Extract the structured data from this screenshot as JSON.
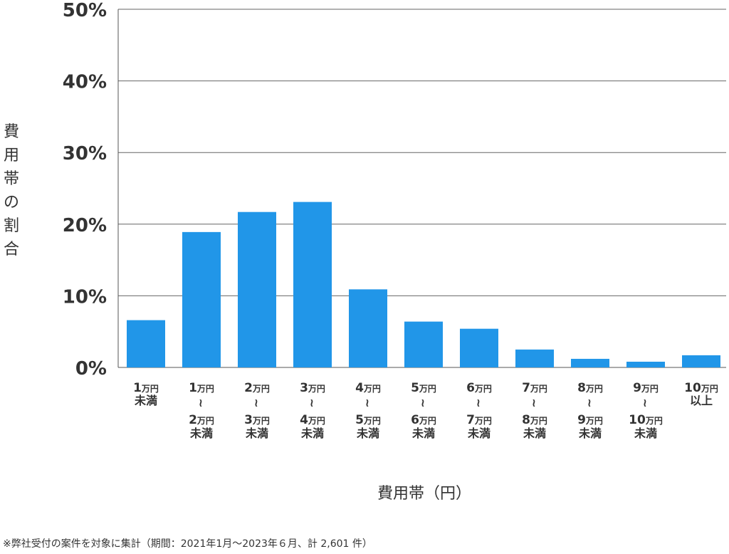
{
  "chart_data": {
    "type": "bar",
    "ylabel": "費用帯の割合",
    "xlabel": "費用帯（円）",
    "note": "※弊社受付の案件を対象に集計（期間：2021年1月～2023年６月、計 2,601 件）",
    "ylim": [
      0,
      50
    ],
    "yticks": [
      "0%",
      "10%",
      "20%",
      "30%",
      "40%",
      "50%"
    ],
    "ytick_values": [
      0,
      10,
      20,
      30,
      40,
      50
    ],
    "grid": true,
    "bar_color": "#2196e8",
    "categories": [
      {
        "from_num": "1",
        "from_unit": "万円",
        "to_num": "",
        "to_unit": "",
        "suffix": "未満"
      },
      {
        "from_num": "1",
        "from_unit": "万円",
        "to_num": "2",
        "to_unit": "万円",
        "suffix": "未満"
      },
      {
        "from_num": "2",
        "from_unit": "万円",
        "to_num": "3",
        "to_unit": "万円",
        "suffix": "未満"
      },
      {
        "from_num": "3",
        "from_unit": "万円",
        "to_num": "4",
        "to_unit": "万円",
        "suffix": "未満"
      },
      {
        "from_num": "4",
        "from_unit": "万円",
        "to_num": "5",
        "to_unit": "万円",
        "suffix": "未満"
      },
      {
        "from_num": "5",
        "from_unit": "万円",
        "to_num": "6",
        "to_unit": "万円",
        "suffix": "未満"
      },
      {
        "from_num": "6",
        "from_unit": "万円",
        "to_num": "7",
        "to_unit": "万円",
        "suffix": "未満"
      },
      {
        "from_num": "7",
        "from_unit": "万円",
        "to_num": "8",
        "to_unit": "万円",
        "suffix": "未満"
      },
      {
        "from_num": "8",
        "from_unit": "万円",
        "to_num": "9",
        "to_unit": "万円",
        "suffix": "未満"
      },
      {
        "from_num": "9",
        "from_unit": "万円",
        "to_num": "10",
        "to_unit": "万円",
        "suffix": "未満"
      },
      {
        "from_num": "10",
        "from_unit": "万円",
        "to_num": "",
        "to_unit": "",
        "suffix": "以上"
      }
    ],
    "range_symbol": "~",
    "values": [
      6.6,
      18.9,
      21.7,
      23.1,
      10.9,
      6.4,
      5.4,
      2.5,
      1.2,
      0.8,
      1.7
    ]
  }
}
